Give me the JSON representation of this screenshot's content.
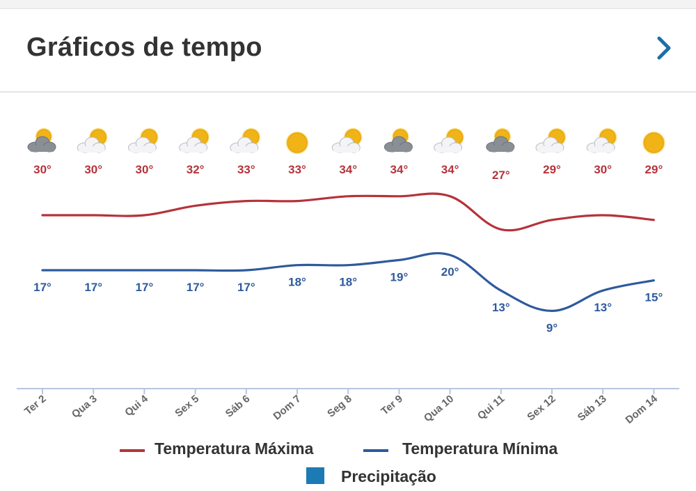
{
  "header": {
    "title": "Gráficos de tempo",
    "more_icon": "chevron-right-icon"
  },
  "colors": {
    "max": "#b5333a",
    "min": "#2e5a9c",
    "precip": "#1c7ab5",
    "axis": "#b9c4dd"
  },
  "chart_data": {
    "type": "line",
    "categories": [
      "Ter 2",
      "Qua 3",
      "Qui 4",
      "Sex 5",
      "Sáb 6",
      "Dom 7",
      "Seg 8",
      "Ter 9",
      "Qua 10",
      "Qui 11",
      "Sex 12",
      "Sáb 13",
      "Dom 14"
    ],
    "weather_icons": [
      "cloudy-sun-icon",
      "partly-cloudy-icon",
      "partly-cloudy-icon",
      "partly-cloudy-icon",
      "partly-cloudy-icon",
      "sun-icon",
      "partly-cloudy-icon",
      "cloudy-sun-icon",
      "partly-cloudy-icon",
      "cloudy-sun-icon",
      "partly-cloudy-icon",
      "partly-cloudy-icon",
      "sun-icon"
    ],
    "series": [
      {
        "name": "Temperatura Máxima",
        "values": [
          30,
          30,
          30,
          32,
          33,
          33,
          34,
          34,
          34,
          27,
          29,
          30,
          29
        ],
        "labels": [
          "30°",
          "30°",
          "30°",
          "32°",
          "33°",
          "33°",
          "34°",
          "34°",
          "34°",
          "27°",
          "29°",
          "30°",
          "29°"
        ]
      },
      {
        "name": "Temperatura Mínima",
        "values": [
          17,
          17,
          17,
          17,
          17,
          18,
          18,
          19,
          20,
          13,
          9,
          13,
          15
        ],
        "labels": [
          "17°",
          "17°",
          "17°",
          "17°",
          "17°",
          "18°",
          "18°",
          "19°",
          "20°",
          "13°",
          "9°",
          "13°",
          "15°"
        ]
      }
    ],
    "legend": {
      "max_label": "Temperatura Máxima",
      "min_label": "Temperatura Mínima",
      "precip_label": "Precipitação",
      "position": "bottom"
    }
  }
}
